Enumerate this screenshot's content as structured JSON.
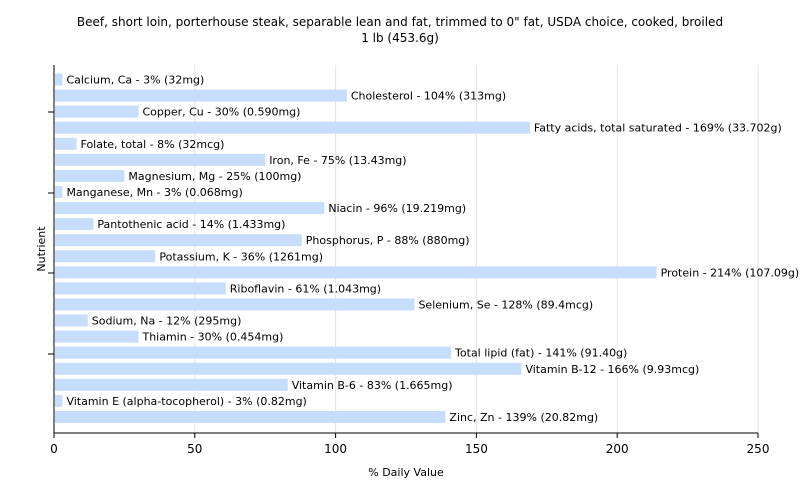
{
  "chart_data": {
    "type": "bar",
    "orientation": "horizontal",
    "title": "Beef, short loin, porterhouse steak, separable lean and fat, trimmed to 0\" fat, USDA choice, cooked, broiled",
    "subtitle": "1 lb (453.6g)",
    "xlabel": "% Daily Value",
    "ylabel": "Nutrient",
    "xlim": [
      0,
      250
    ],
    "xticks": [
      0,
      50,
      100,
      150,
      200,
      250
    ],
    "grid": "vertical",
    "bar_color": "#c6ddfb",
    "categories": [
      "Calcium, Ca",
      "Cholesterol",
      "Copper, Cu",
      "Fatty acids, total saturated",
      "Folate, total",
      "Iron, Fe",
      "Magnesium, Mg",
      "Manganese, Mn",
      "Niacin",
      "Pantothenic acid",
      "Phosphorus, P",
      "Potassium, K",
      "Protein",
      "Riboflavin",
      "Selenium, Se",
      "Sodium, Na",
      "Thiamin",
      "Total lipid (fat)",
      "Vitamin B-12",
      "Vitamin B-6",
      "Vitamin E (alpha-tocopherol)",
      "Zinc, Zn"
    ],
    "values": [
      3,
      104,
      30,
      169,
      8,
      75,
      25,
      3,
      96,
      14,
      88,
      36,
      214,
      61,
      128,
      12,
      30,
      141,
      166,
      83,
      3,
      139
    ],
    "labels": [
      "Calcium, Ca - 3% (32mg)",
      "Cholesterol - 104% (313mg)",
      "Copper, Cu - 30% (0.590mg)",
      "Fatty acids, total saturated - 169% (33.702g)",
      "Folate, total - 8% (32mcg)",
      "Iron, Fe - 75% (13.43mg)",
      "Magnesium, Mg - 25% (100mg)",
      "Manganese, Mn - 3% (0.068mg)",
      "Niacin - 96% (19.219mg)",
      "Pantothenic acid - 14% (1.433mg)",
      "Phosphorus, P - 88% (880mg)",
      "Potassium, K - 36% (1261mg)",
      "Protein - 214% (107.09g)",
      "Riboflavin - 61% (1.043mg)",
      "Selenium, Se - 128% (89.4mcg)",
      "Sodium, Na - 12% (295mg)",
      "Thiamin - 30% (0.454mg)",
      "Total lipid (fat) - 141% (91.40g)",
      "Vitamin B-12 - 166% (9.93mcg)",
      "Vitamin B-6 - 83% (1.665mg)",
      "Vitamin E (alpha-tocopherol) - 3% (0.82mg)",
      "Zinc, Zn - 139% (20.82mg)"
    ]
  }
}
